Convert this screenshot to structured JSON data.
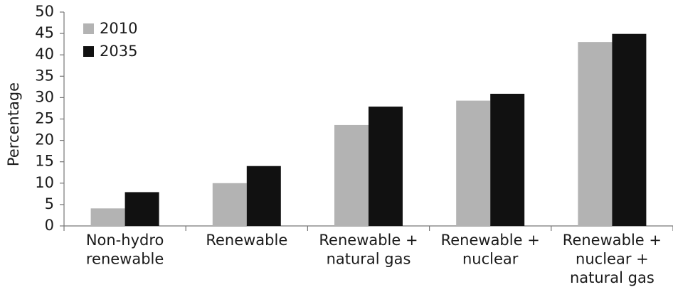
{
  "chart_data": {
    "type": "bar",
    "ylabel": "Percentage",
    "categories": [
      [
        "Non-hydro",
        "renewable"
      ],
      [
        "Renewable"
      ],
      [
        "Renewable +",
        "natural gas"
      ],
      [
        "Renewable +",
        "nuclear"
      ],
      [
        "Renewable +",
        "nuclear +",
        "natural gas"
      ]
    ],
    "series": [
      {
        "name": "2010",
        "color": "#b3b3b3",
        "values": [
          4.1,
          10,
          23.6,
          29.3,
          43
        ]
      },
      {
        "name": "2035",
        "color": "#111111",
        "values": [
          7.9,
          14,
          27.9,
          30.9,
          44.9
        ]
      }
    ],
    "ylim": [
      0,
      50
    ],
    "yticks": [
      0,
      5,
      10,
      15,
      20,
      25,
      30,
      35,
      40,
      45,
      50
    ],
    "grid": false,
    "legend": "upper left"
  }
}
